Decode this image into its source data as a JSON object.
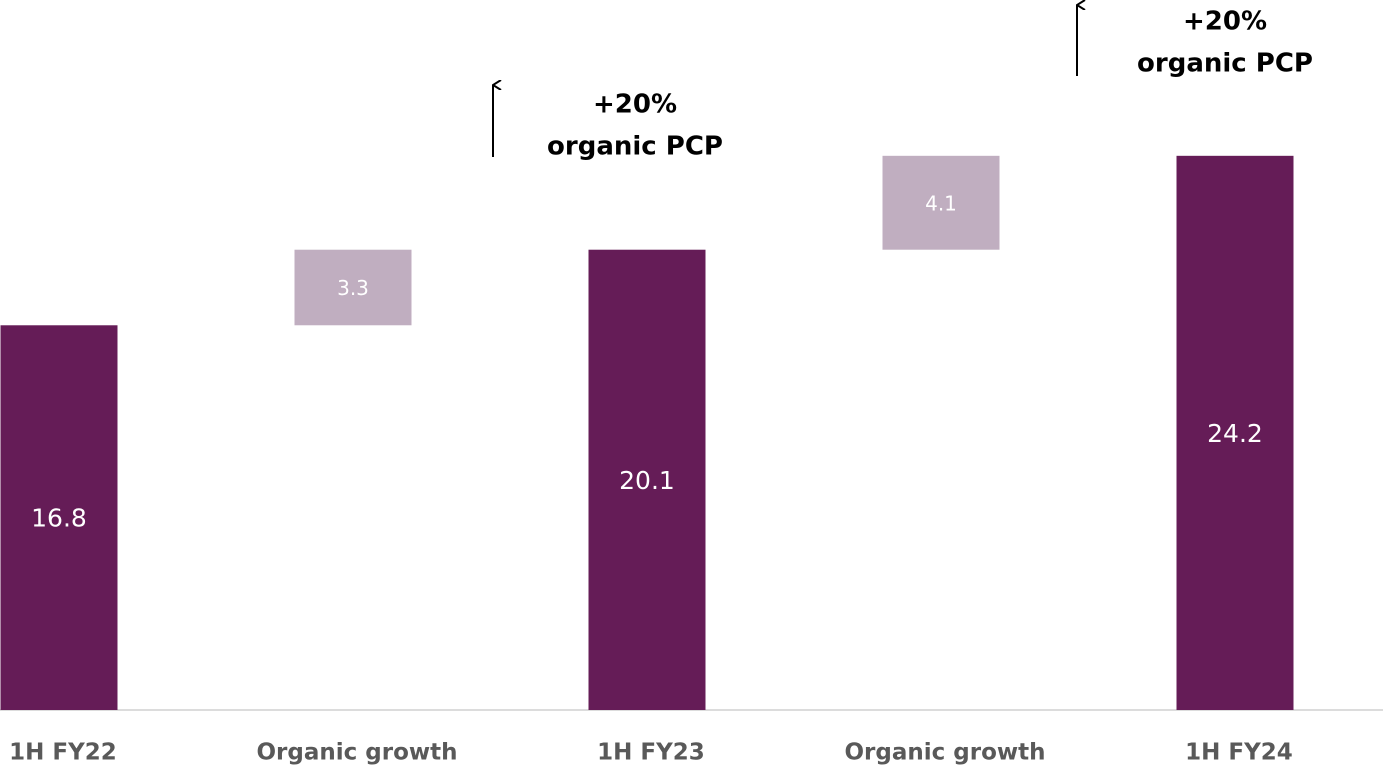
{
  "chart_data": {
    "type": "waterfall",
    "categories": [
      "1H FY22",
      "Organic growth",
      "1H FY23",
      "Organic growth",
      "1H FY24"
    ],
    "values": [
      16.8,
      3.3,
      20.1,
      4.1,
      24.2
    ],
    "measure": [
      "total",
      "relative",
      "total",
      "relative",
      "total"
    ],
    "colors": {
      "total": "#651c57",
      "relative": "#c0aec0"
    },
    "ylim": [
      0,
      30
    ],
    "annotations": [
      {
        "lines": [
          "+20%",
          "organic PCP"
        ]
      },
      {
        "lines": [
          "+20%",
          "organic PCP"
        ]
      }
    ]
  }
}
